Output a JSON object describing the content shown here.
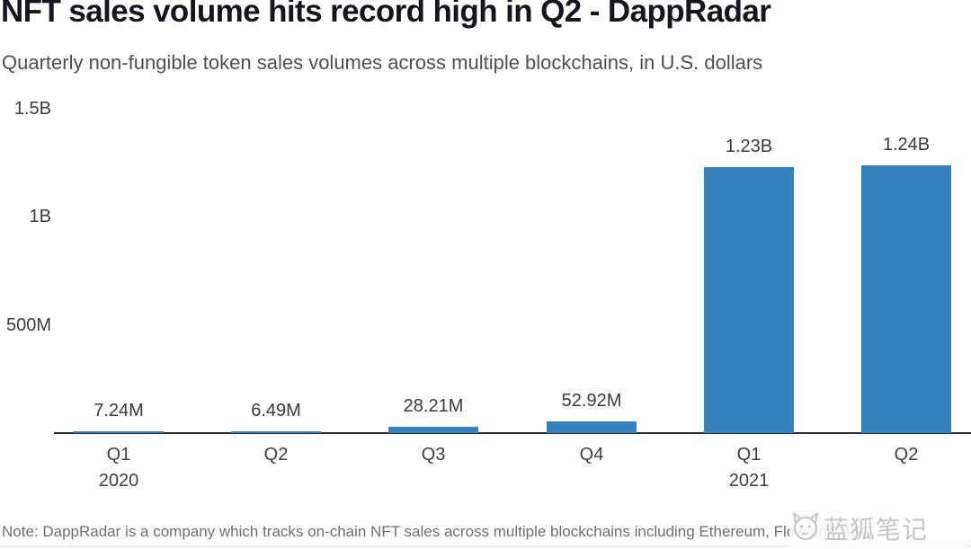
{
  "header": {
    "title": "NFT sales volume hits record high in Q2 - DappRadar",
    "subtitle": "Quarterly non-fungible token sales volumes across multiple blockchains, in U.S. dollars"
  },
  "chart_data": {
    "type": "bar",
    "title": "NFT sales volume hits record high in Q2 - DappRadar",
    "subtitle": "Quarterly non-fungible token sales volumes across multiple blockchains, in U.S. dollars",
    "categories": [
      "Q1",
      "Q2",
      "Q3",
      "Q4",
      "Q1",
      "Q2"
    ],
    "year_labels": [
      "2020",
      "",
      "",
      "",
      "2021",
      ""
    ],
    "values": [
      7240000,
      6490000,
      28210000,
      52920000,
      1230000000,
      1240000000
    ],
    "value_labels": [
      "7.24M",
      "6.49M",
      "28.21M",
      "52.92M",
      "1.23B",
      "1.24B"
    ],
    "xlabel": "",
    "ylabel": "",
    "y_ticks": [
      {
        "label": "1.5B",
        "value": 1500000000
      },
      {
        "label": "1B",
        "value": 1000000000
      },
      {
        "label": "500M",
        "value": 500000000
      }
    ],
    "ylim": [
      0,
      1550000000
    ],
    "grid": "off",
    "legend": "none",
    "bar_color": "#3781bc",
    "axis_color": "#2d2d2d"
  },
  "footer": {
    "note": "Note: DappRadar is a company which tracks on-chain NFT sales across multiple blockchains including Ethereum, Flow and BSC."
  },
  "watermark": {
    "text": "蓝狐笔记",
    "icon": "fox-icon"
  }
}
